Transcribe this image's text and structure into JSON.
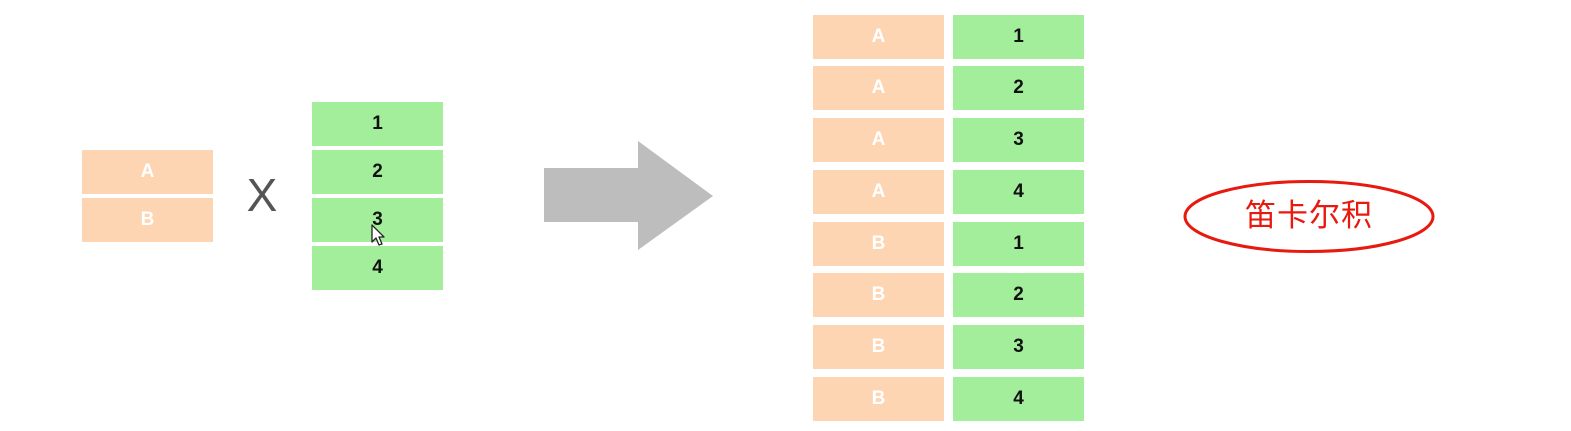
{
  "colors": {
    "peach": "#fdd5b2",
    "green": "#a3ee9a",
    "arrow": "#bdbdbd",
    "highlight": "#e8190e"
  },
  "left_table": {
    "cells": [
      "A",
      "B"
    ]
  },
  "operator": "X",
  "right_table": {
    "cells": [
      "1",
      "2",
      "3",
      "4"
    ]
  },
  "result_table": {
    "rows": [
      [
        "A",
        "1"
      ],
      [
        "A",
        "2"
      ],
      [
        "A",
        "3"
      ],
      [
        "A",
        "4"
      ],
      [
        "B",
        "1"
      ],
      [
        "B",
        "2"
      ],
      [
        "B",
        "3"
      ],
      [
        "B",
        "4"
      ]
    ]
  },
  "label": "笛卡尔积",
  "icons": {
    "arrow": "right-arrow-icon",
    "cursor": "mouse-cursor-icon"
  }
}
